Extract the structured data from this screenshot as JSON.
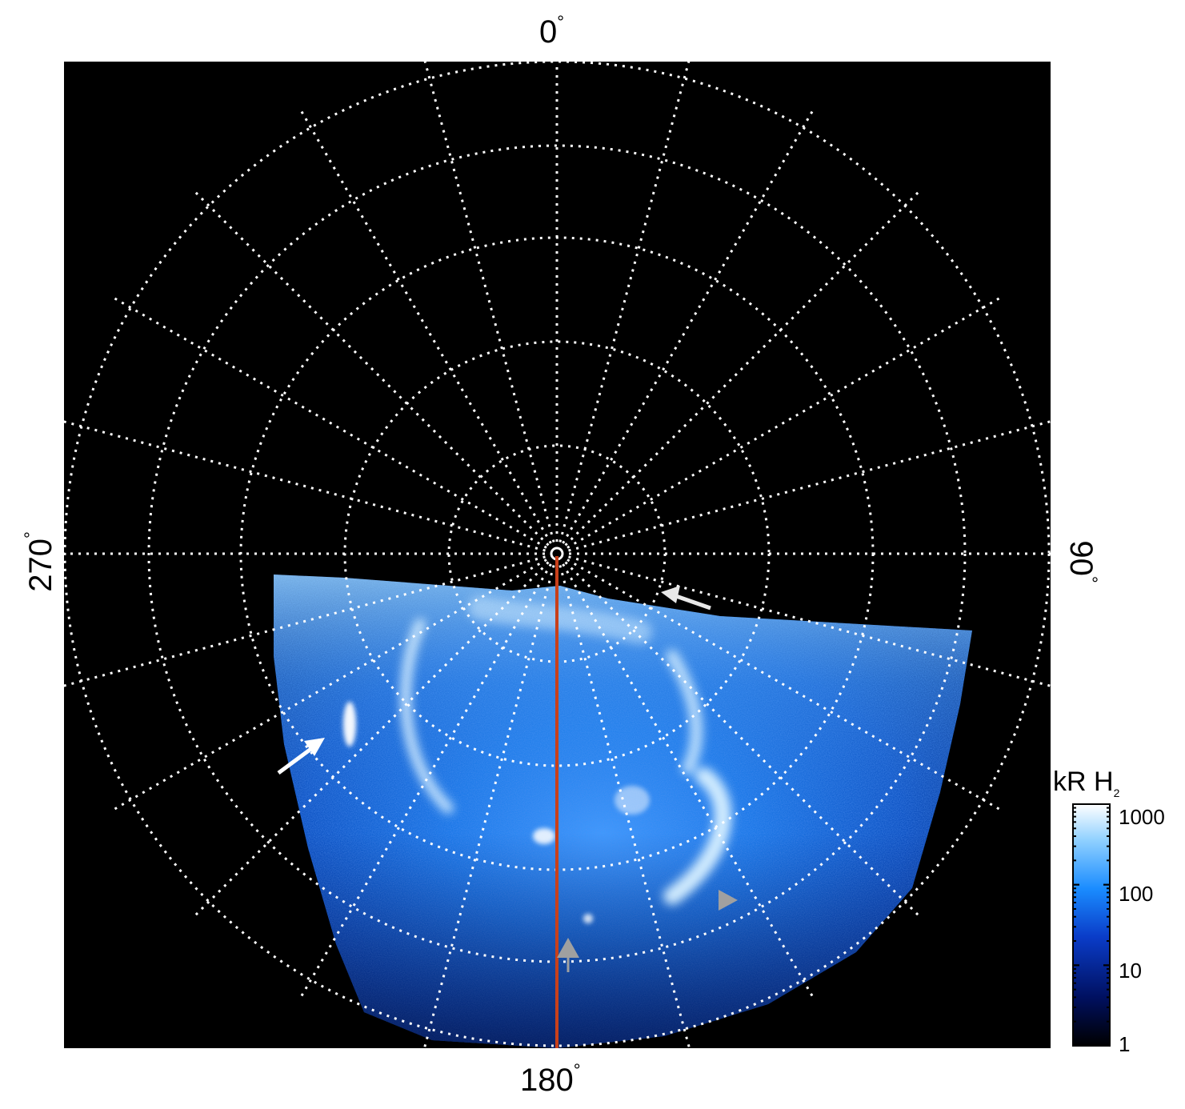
{
  "figure": {
    "labels": {
      "top": "0",
      "right": "90",
      "bottom": "180",
      "left": "270",
      "degree_symbol": "°"
    },
    "colorbar": {
      "title": "kR H",
      "title_subscript": "2",
      "ticks": [
        "1000",
        "100",
        "10",
        "1"
      ],
      "colors": [
        "#ffffff",
        "#8fd0ff",
        "#1a8cff",
        "#0a3cc8",
        "#001060",
        "#000000"
      ]
    },
    "colors": {
      "plot_background": "#000000",
      "grid": "#ffffff",
      "meridian_line": "#c8401a",
      "arrow_white": "#ffffff",
      "arrow_grey": "#a0a0a0"
    }
  }
}
